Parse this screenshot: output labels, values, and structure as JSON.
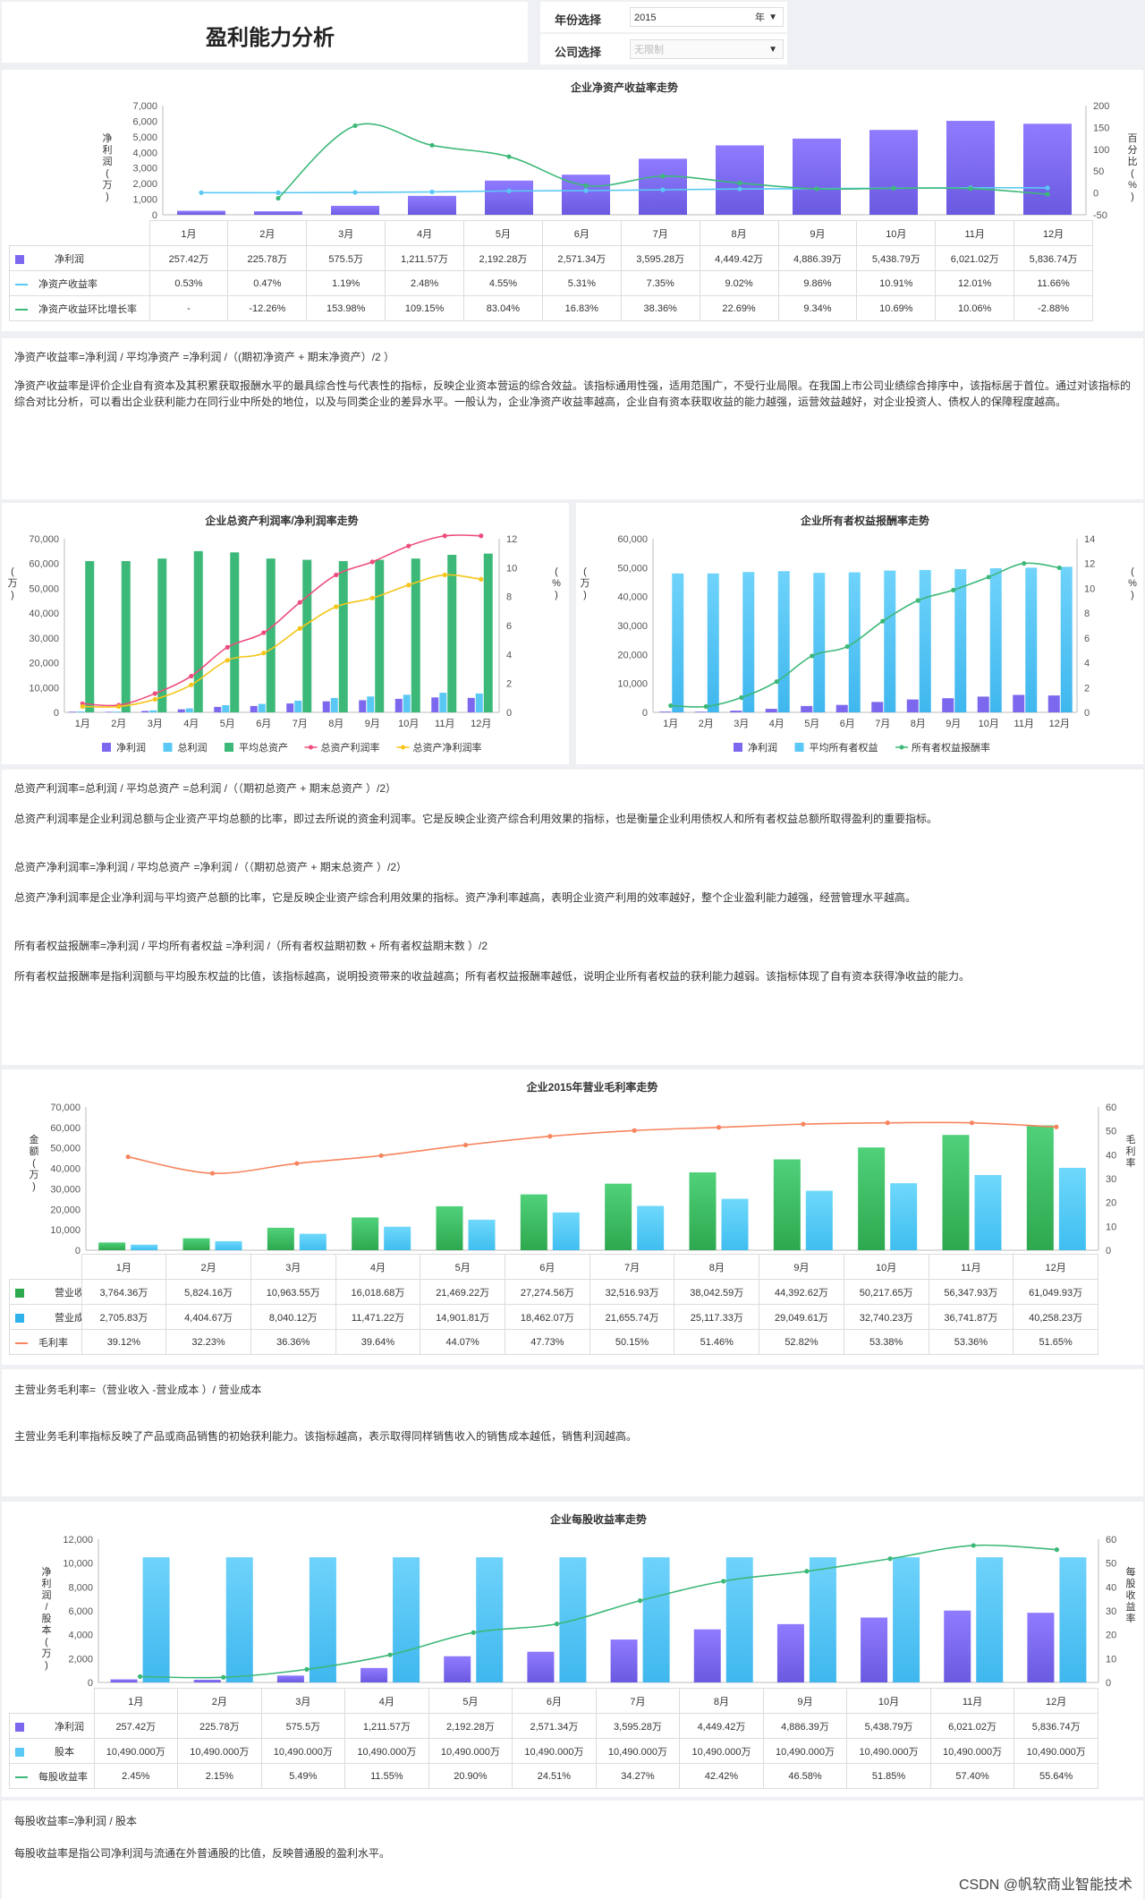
{
  "header": {
    "title": "盈利能力分析",
    "year_label": "年份选择",
    "year_value": "2015",
    "year_unit": "年",
    "company_label": "公司选择",
    "company_placeholder": "无限制"
  },
  "months": [
    "1月",
    "2月",
    "3月",
    "4月",
    "5月",
    "6月",
    "7月",
    "8月",
    "9月",
    "10月",
    "11月",
    "12月"
  ],
  "roe": {
    "title": "企业净资产收益率走势",
    "y_left_label": "净利润(万)",
    "y_right_label": "百分比(%)",
    "y_left_ticks": [
      "7,000",
      "6,000",
      "5,000",
      "4,000",
      "3,000",
      "2,000",
      "1,000",
      "0"
    ],
    "y_right_ticks": [
      "200",
      "150",
      "100",
      "50",
      "0",
      "-50"
    ],
    "rows": [
      {
        "name": "净利润",
        "values": [
          "257.42万",
          "225.78万",
          "575.5万",
          "1,211.57万",
          "2,192.28万",
          "2,571.34万",
          "3,595.28万",
          "4,449.42万",
          "4,886.39万",
          "5,438.79万",
          "6,021.02万",
          "5,836.74万"
        ]
      },
      {
        "name": "净资产收益率",
        "values": [
          "0.53%",
          "0.47%",
          "1.19%",
          "2.48%",
          "4.55%",
          "5.31%",
          "7.35%",
          "9.02%",
          "9.86%",
          "10.91%",
          "12.01%",
          "11.66%"
        ]
      },
      {
        "name": "净资产收益环比增长率",
        "values": [
          "-",
          "-12.26%",
          "153.98%",
          "109.15%",
          "83.04%",
          "16.83%",
          "38.36%",
          "22.69%",
          "9.34%",
          "10.69%",
          "10.06%",
          "-2.88%"
        ]
      }
    ],
    "formula": "净资产收益率=净利润 / 平均净资产 =净利润 /（(期初净资产 + 期末净资产）/2 ）",
    "desc": "净资产收益率是评价企业自有资本及其积累获取报酬水平的最具综合性与代表性的指标，反映企业资本营运的综合效益。该指标通用性强，适用范围广，不受行业局限。在我国上市公司业绩综合排序中，该指标居于首位。通过对该指标的综合对比分析，可以看出企业获利能力在同行业中所处的地位，以及与同类企业的差异水平。一般认为，企业净资产收益率越高，企业自有资本获取收益的能力越强，运营效益越好，对企业投资人、债权人的保障程度越高。"
  },
  "assets": {
    "title": "企业总资产利润率/净利润率走势",
    "y_left_label": "(万)",
    "y_right_label": "(%)",
    "y_left_ticks": [
      "70,000",
      "60,000",
      "50,000",
      "40,000",
      "30,000",
      "20,000",
      "10,000",
      "0"
    ],
    "y_right_ticks": [
      "12",
      "10",
      "8",
      "6",
      "4",
      "2",
      "0"
    ],
    "legend": [
      "净利润",
      "总利润",
      "平均总资产",
      "总资产利润率",
      "总资产净利润率"
    ]
  },
  "equity": {
    "title": "企业所有者权益报酬率走势",
    "y_left_label": "(万)",
    "y_right_label": "(%)",
    "y_left_ticks": [
      "60,000",
      "50,000",
      "40,000",
      "30,000",
      "20,000",
      "10,000",
      "0"
    ],
    "y_right_ticks": [
      "14",
      "12",
      "10",
      "8",
      "6",
      "4",
      "2",
      "0"
    ],
    "legend": [
      "净利润",
      "平均所有者权益",
      "所有者权益报酬率"
    ]
  },
  "texts2": [
    "总资产利润率=总利润 / 平均总资产 =总利润 /（（期初总资产 + 期末总资产 ）/2）",
    "总资产利润率是企业利润总额与企业资产平均总额的比率，即过去所说的资金利润率。它是反映企业资产综合利用效果的指标，也是衡量企业利用债权人和所有者权益总额所取得盈利的重要指标。",
    "总资产净利润率=净利润 / 平均总资产 =净利润 /（（期初总资产 + 期末总资产 ）/2）",
    "总资产净利润率是企业净利润与平均资产总额的比率，它是反映企业资产综合利用效果的指标。资产净利率越高，表明企业资产利用的效率越好，整个企业盈利能力越强，经营管理水平越高。",
    "所有者权益报酬率=净利润 / 平均所有者权益 =净利润 /（所有者权益期初数 + 所有者权益期末数 ）/2",
    "所有者权益报酬率是指利润额与平均股东权益的比值，该指标越高，说明投资带来的收益越高；所有者权益报酬率越低，说明企业所有者权益的获利能力越弱。该指标体现了自有资本获得净收益的能力。"
  ],
  "gross": {
    "title": "企业2015年营业毛利率走势",
    "y_left_label": "金额(万)",
    "y_right_label": "毛利率",
    "y_left_ticks": [
      "70,000",
      "60,000",
      "50,000",
      "40,000",
      "30,000",
      "20,000",
      "10,000",
      "0"
    ],
    "y_right_ticks": [
      "60",
      "50",
      "40",
      "30",
      "20",
      "10",
      "0"
    ],
    "rows": [
      {
        "name": "营业收入",
        "values": [
          "3,764.36万",
          "5,824.16万",
          "10,963.55万",
          "16,018.68万",
          "21,469.22万",
          "27,274.56万",
          "32,516.93万",
          "38,042.59万",
          "44,392.62万",
          "50,217.65万",
          "56,347.93万",
          "61,049.93万"
        ]
      },
      {
        "name": "营业成本",
        "values": [
          "2,705.83万",
          "4,404.67万",
          "8,040.12万",
          "11,471.22万",
          "14,901.81万",
          "18,462.07万",
          "21,655.74万",
          "25,117.33万",
          "29,049.61万",
          "32,740.23万",
          "36,741.87万",
          "40,258.23万"
        ]
      },
      {
        "name": "毛利率",
        "values": [
          "39.12%",
          "32.23%",
          "36.36%",
          "39.64%",
          "44.07%",
          "47.73%",
          "50.15%",
          "51.46%",
          "52.82%",
          "53.38%",
          "53.36%",
          "51.65%"
        ]
      }
    ],
    "formula": "主营业务毛利率=（营业收入 -营业成本 ）/ 营业成本",
    "desc": "主营业务毛利率指标反映了产品或商品销售的初始获利能力。该指标越高，表示取得同样销售收入的销售成本越低，销售利润越高。"
  },
  "eps": {
    "title": "企业每股收益率走势",
    "y_left_label": "净利润/股本(万)",
    "y_right_label": "每股收益率",
    "y_left_ticks": [
      "12,000",
      "10,000",
      "8,000",
      "6,000",
      "4,000",
      "2,000",
      "0"
    ],
    "y_right_ticks": [
      "60",
      "50",
      "40",
      "30",
      "20",
      "10",
      "0"
    ],
    "rows": [
      {
        "name": "净利润",
        "values": [
          "257.42万",
          "225.78万",
          "575.5万",
          "1,211.57万",
          "2,192.28万",
          "2,571.34万",
          "3,595.28万",
          "4,449.42万",
          "4,886.39万",
          "5,438.79万",
          "6,021.02万",
          "5,836.74万"
        ]
      },
      {
        "name": "股本",
        "values": [
          "10,490.000万",
          "10,490.000万",
          "10,490.000万",
          "10,490.000万",
          "10,490.000万",
          "10,490.000万",
          "10,490.000万",
          "10,490.000万",
          "10,490.000万",
          "10,490.000万",
          "10,490.000万",
          "10,490.000万"
        ]
      },
      {
        "name": "每股收益率",
        "values": [
          "2.45%",
          "2.15%",
          "5.49%",
          "11.55%",
          "20.90%",
          "24.51%",
          "34.27%",
          "42.42%",
          "46.58%",
          "51.85%",
          "57.40%",
          "55.64%"
        ]
      }
    ],
    "formula": "每股收益率=净利润 / 股本",
    "desc": "每股收益率是指公司净利润与流通在外普通股的比值，反映普通股的盈利水平。"
  },
  "watermark": "CSDN @帆软商业智能技术",
  "colors": {
    "purple": "#7b68ee",
    "teal": "#3cb878",
    "cyan": "#5ac8f5",
    "pink": "#ee4d7c",
    "yellow": "#f5c518",
    "orange": "#f7845e",
    "green": "#2ea84f",
    "lightblue": "#2fb1ec"
  },
  "chart_data": [
    {
      "type": "bar",
      "title": "企业净资产收益率走势",
      "categories": [
        "1月",
        "2月",
        "3月",
        "4月",
        "5月",
        "6月",
        "7月",
        "8月",
        "9月",
        "10月",
        "11月",
        "12月"
      ],
      "series": [
        {
          "name": "净利润",
          "values": [
            257.42,
            225.78,
            575.5,
            1211.57,
            2192.28,
            2571.34,
            3595.28,
            4449.42,
            4886.39,
            5438.79,
            6021.02,
            5836.74
          ]
        },
        {
          "name": "净资产收益率",
          "values": [
            0.53,
            0.47,
            1.19,
            2.48,
            4.55,
            5.31,
            7.35,
            9.02,
            9.86,
            10.91,
            12.01,
            11.66
          ]
        },
        {
          "name": "净资产收益环比增长率",
          "values": [
            null,
            -12.26,
            153.98,
            109.15,
            83.04,
            16.83,
            38.36,
            22.69,
            9.34,
            10.69,
            10.06,
            -2.88
          ]
        }
      ],
      "ylim": [
        0,
        7000
      ],
      "y2lim": [
        -50,
        200
      ]
    },
    {
      "type": "bar",
      "title": "企业总资产利润率/净利润率走势",
      "categories": [
        "1月",
        "2月",
        "3月",
        "4月",
        "5月",
        "6月",
        "7月",
        "8月",
        "9月",
        "10月",
        "11月",
        "12月"
      ],
      "series": [
        {
          "name": "净利润",
          "values": [
            257,
            226,
            576,
            1212,
            2192,
            2571,
            3595,
            4449,
            4886,
            5439,
            6021,
            5837
          ]
        },
        {
          "name": "总利润",
          "values": [
            350,
            300,
            780,
            1600,
            2900,
            3400,
            4700,
            5800,
            6400,
            7100,
            7900,
            7600
          ]
        },
        {
          "name": "平均总资产",
          "values": [
            61000,
            61000,
            62000,
            65000,
            64500,
            62000,
            61500,
            61000,
            61500,
            62000,
            63500,
            64000
          ]
        },
        {
          "name": "总资产利润率",
          "values": [
            0.6,
            0.5,
            1.3,
            2.5,
            4.5,
            5.5,
            7.6,
            9.5,
            10.4,
            11.5,
            12.2,
            12.2
          ]
        },
        {
          "name": "总资产净利润率",
          "values": [
            0.4,
            0.4,
            0.9,
            1.9,
            3.6,
            4.1,
            5.8,
            7.3,
            7.9,
            8.8,
            9.5,
            9.2
          ]
        }
      ],
      "ylim": [
        0,
        70000
      ],
      "y2lim": [
        0,
        12
      ]
    },
    {
      "type": "bar",
      "title": "企业所有者权益报酬率走势",
      "categories": [
        "1月",
        "2月",
        "3月",
        "4月",
        "5月",
        "6月",
        "7月",
        "8月",
        "9月",
        "10月",
        "11月",
        "12月"
      ],
      "series": [
        {
          "name": "净利润",
          "values": [
            257,
            226,
            576,
            1212,
            2192,
            2571,
            3595,
            4449,
            4886,
            5439,
            6021,
            5837
          ]
        },
        {
          "name": "平均所有者权益",
          "values": [
            48000,
            48000,
            48500,
            48800,
            48200,
            48400,
            49000,
            49200,
            49500,
            49800,
            50000,
            50300
          ]
        },
        {
          "name": "所有者权益报酬率",
          "values": [
            0.54,
            0.47,
            1.19,
            2.48,
            4.55,
            5.31,
            7.35,
            9.02,
            9.86,
            10.91,
            12.01,
            11.66
          ]
        }
      ],
      "ylim": [
        0,
        60000
      ],
      "y2lim": [
        0,
        14
      ]
    },
    {
      "type": "bar",
      "title": "企业2015年营业毛利率走势",
      "categories": [
        "1月",
        "2月",
        "3月",
        "4月",
        "5月",
        "6月",
        "7月",
        "8月",
        "9月",
        "10月",
        "11月",
        "12月"
      ],
      "series": [
        {
          "name": "营业收入",
          "values": [
            3764.36,
            5824.16,
            10963.55,
            16018.68,
            21469.22,
            27274.56,
            32516.93,
            38042.59,
            44392.62,
            50217.65,
            56347.93,
            61049.93
          ]
        },
        {
          "name": "营业成本",
          "values": [
            2705.83,
            4404.67,
            8040.12,
            11471.22,
            14901.81,
            18462.07,
            21655.74,
            25117.33,
            29049.61,
            32740.23,
            36741.87,
            40258.23
          ]
        },
        {
          "name": "毛利率",
          "values": [
            39.12,
            32.23,
            36.36,
            39.64,
            44.07,
            47.73,
            50.15,
            51.46,
            52.82,
            53.38,
            53.36,
            51.65
          ]
        }
      ],
      "ylim": [
        0,
        70000
      ],
      "y2lim": [
        0,
        60
      ]
    },
    {
      "type": "bar",
      "title": "企业每股收益率走势",
      "categories": [
        "1月",
        "2月",
        "3月",
        "4月",
        "5月",
        "6月",
        "7月",
        "8月",
        "9月",
        "10月",
        "11月",
        "12月"
      ],
      "series": [
        {
          "name": "净利润",
          "values": [
            257.42,
            225.78,
            575.5,
            1211.57,
            2192.28,
            2571.34,
            3595.28,
            4449.42,
            4886.39,
            5438.79,
            6021.02,
            5836.74
          ]
        },
        {
          "name": "股本",
          "values": [
            10490,
            10490,
            10490,
            10490,
            10490,
            10490,
            10490,
            10490,
            10490,
            10490,
            10490,
            10490
          ]
        },
        {
          "name": "每股收益率",
          "values": [
            2.45,
            2.15,
            5.49,
            11.55,
            20.9,
            24.51,
            34.27,
            42.42,
            46.58,
            51.85,
            57.4,
            55.64
          ]
        }
      ],
      "ylim": [
        0,
        12000
      ],
      "y2lim": [
        0,
        60
      ]
    }
  ]
}
